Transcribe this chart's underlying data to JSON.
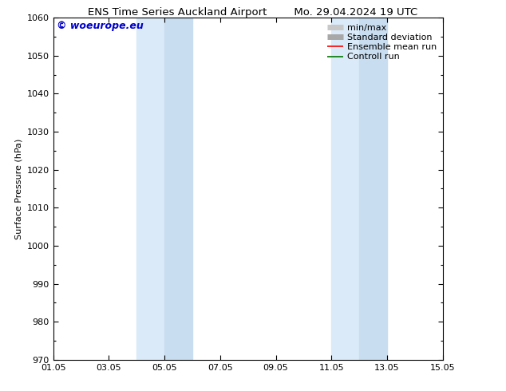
{
  "title_left": "ENS Time Series Auckland Airport",
  "title_right": "Mo. 29.04.2024 19 UTC",
  "ylabel": "Surface Pressure (hPa)",
  "ylim": [
    970,
    1060
  ],
  "yticks": [
    970,
    980,
    990,
    1000,
    1010,
    1020,
    1030,
    1040,
    1050,
    1060
  ],
  "xtick_labels": [
    "01.05",
    "03.05",
    "05.05",
    "07.05",
    "09.05",
    "11.05",
    "13.05",
    "15.05"
  ],
  "xtick_positions": [
    0,
    2,
    4,
    6,
    8,
    10,
    12,
    14
  ],
  "x_min": 0,
  "x_max": 14,
  "shaded_bands": [
    {
      "x_start": 3.0,
      "x_end": 4.0
    },
    {
      "x_start": 4.0,
      "x_end": 5.0
    },
    {
      "x_start": 10.0,
      "x_end": 11.0
    },
    {
      "x_start": 11.0,
      "x_end": 12.0
    }
  ],
  "shaded_color": "#daeaf8",
  "shaded_color2": "#c8ddf0",
  "watermark_text": "© woeurope.eu",
  "watermark_color": "#0000cc",
  "legend_entries": [
    {
      "label": "min/max",
      "color": "#c8c8c8",
      "lw": 5,
      "type": "line"
    },
    {
      "label": "Standard deviation",
      "color": "#a8a8a8",
      "lw": 5,
      "type": "line"
    },
    {
      "label": "Ensemble mean run",
      "color": "#ff0000",
      "lw": 1.2,
      "type": "line"
    },
    {
      "label": "Controll run",
      "color": "#007700",
      "lw": 1.2,
      "type": "line"
    }
  ],
  "background_color": "#ffffff",
  "axes_bg_color": "#ffffff",
  "font_size": 8,
  "title_font_size": 9.5
}
